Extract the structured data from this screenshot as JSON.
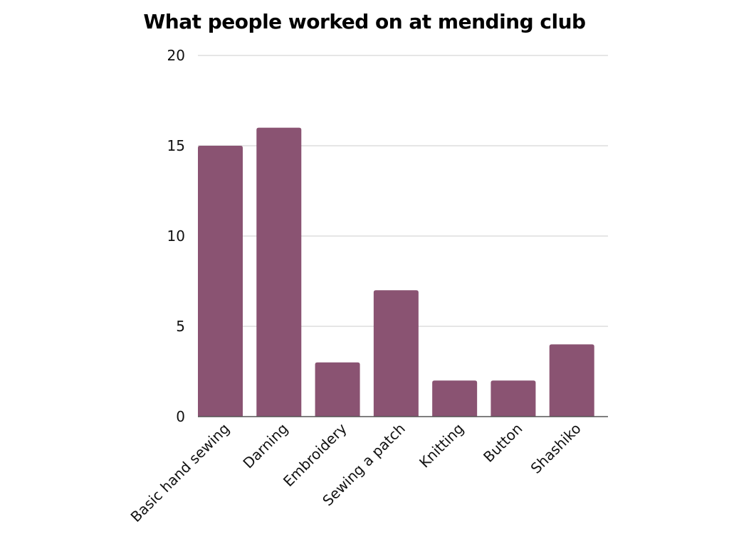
{
  "chart_data": {
    "type": "bar",
    "title": "What people worked on at mending club",
    "xlabel": "",
    "ylabel": "",
    "categories": [
      "Basic hand sewing",
      "Darning",
      "Embroidery",
      "Sewing a patch",
      "Knitting",
      "Button",
      "Shashiko"
    ],
    "values": [
      15,
      16,
      3,
      7,
      2,
      2,
      4
    ],
    "ylim": [
      0,
      20
    ],
    "yticks": [
      "0",
      "5",
      "10",
      "15",
      "20"
    ],
    "grid": true,
    "legend": "none",
    "bar_color": "#8a5372",
    "grid_color": "#cccccc",
    "axis_color": "#555555"
  }
}
